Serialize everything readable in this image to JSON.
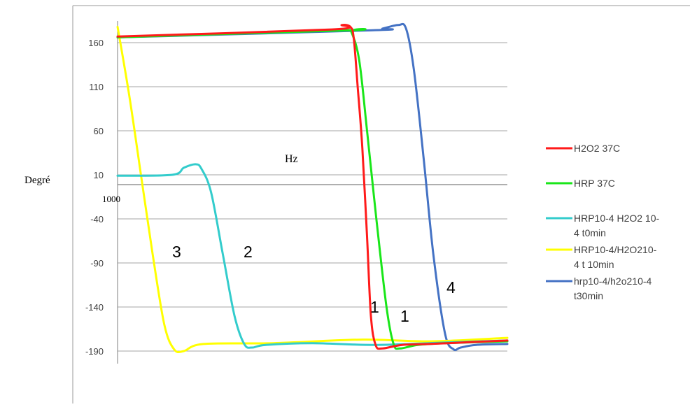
{
  "chart_data": {
    "type": "line",
    "ylabel": "Degré",
    "xunit_label": "Hz",
    "x_axis_start_label": "1000",
    "ylim": [
      -190,
      160
    ],
    "yticks": [
      160,
      110,
      60,
      10,
      -40,
      -90,
      -140,
      -190
    ],
    "grid": true,
    "legend_position": "right",
    "series": [
      {
        "name": "H2O2 37C",
        "color": "#ff1a1a",
        "points": [
          [
            0,
            167
          ],
          [
            0.55,
            175
          ],
          [
            0.575,
            180
          ],
          [
            0.597,
            178
          ],
          [
            0.606,
            165
          ],
          [
            0.616,
            110
          ],
          [
            0.628,
            40
          ],
          [
            0.64,
            -60
          ],
          [
            0.65,
            -150
          ],
          [
            0.662,
            -183
          ],
          [
            0.68,
            -187
          ],
          [
            0.73,
            -183
          ],
          [
            0.8,
            -182
          ],
          [
            1.0,
            -178
          ]
        ]
      },
      {
        "name": "HRP 37C",
        "color": "#19e619",
        "points": [
          [
            0,
            166
          ],
          [
            0.59,
            174
          ],
          [
            0.6,
            172
          ],
          [
            0.62,
            140
          ],
          [
            0.64,
            60
          ],
          [
            0.664,
            -40
          ],
          [
            0.69,
            -140
          ],
          [
            0.708,
            -182
          ],
          [
            0.725,
            -187
          ],
          [
            0.77,
            -183
          ],
          [
            0.84,
            -181
          ],
          [
            1.0,
            -179
          ]
        ]
      },
      {
        "name": "HRP10-4 H2O2 10-4 t0min",
        "color": "#33cccc",
        "points": [
          [
            0,
            9
          ],
          [
            0.14,
            10
          ],
          [
            0.17,
            18
          ],
          [
            0.2,
            22
          ],
          [
            0.215,
            17
          ],
          [
            0.24,
            -10
          ],
          [
            0.27,
            -80
          ],
          [
            0.3,
            -150
          ],
          [
            0.325,
            -182
          ],
          [
            0.345,
            -186
          ],
          [
            0.38,
            -183
          ],
          [
            0.5,
            -181
          ],
          [
            0.66,
            -183
          ],
          [
            0.86,
            -180
          ],
          [
            1.0,
            -178
          ]
        ]
      },
      {
        "name": "HRP10-4/H2O210-4 t 10min",
        "color": "#ffff00",
        "points": [
          [
            0,
            178
          ],
          [
            0.03,
            100
          ],
          [
            0.06,
            10
          ],
          [
            0.09,
            -80
          ],
          [
            0.12,
            -160
          ],
          [
            0.145,
            -188
          ],
          [
            0.17,
            -190
          ],
          [
            0.22,
            -182
          ],
          [
            0.4,
            -181
          ],
          [
            0.63,
            -177
          ],
          [
            0.8,
            -179
          ],
          [
            1.0,
            -175
          ]
        ]
      },
      {
        "name": "hrp10-4/h2o210-4 t30min",
        "color": "#4472c4",
        "points": [
          [
            0,
            166
          ],
          [
            0.65,
            174
          ],
          [
            0.68,
            176
          ],
          [
            0.72,
            180
          ],
          [
            0.74,
            176
          ],
          [
            0.76,
            130
          ],
          [
            0.785,
            30
          ],
          [
            0.81,
            -80
          ],
          [
            0.84,
            -170
          ],
          [
            0.862,
            -188
          ],
          [
            0.88,
            -186
          ],
          [
            0.92,
            -183
          ],
          [
            1.0,
            -182
          ]
        ]
      }
    ],
    "annotations": [
      "3",
      "2",
      "1",
      "1",
      "4"
    ]
  }
}
